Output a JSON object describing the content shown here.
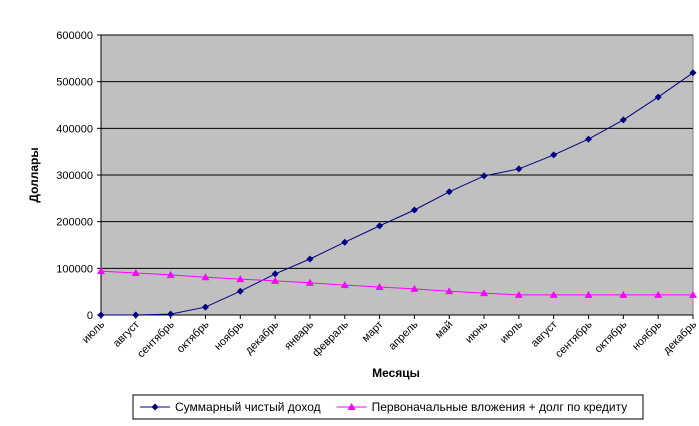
{
  "chart_data": {
    "type": "line",
    "x_label": "Месяцы",
    "y_label": "Доллары",
    "categories": [
      "июль",
      "август",
      "сентябрь",
      "октябрь",
      "ноябрь",
      "декабрь",
      "январь",
      "февраль",
      "март",
      "апрель",
      "май",
      "июнь",
      "июль",
      "август",
      "сентябрь",
      "октябрь",
      "ноябрь",
      "декабрь"
    ],
    "series": [
      {
        "name": "Суммарный чистый доход",
        "color": "#000080",
        "marker": "diamond",
        "values": [
          0,
          0,
          2000,
          17000,
          51000,
          88000,
          120000,
          156000,
          191000,
          225000,
          264000,
          298000,
          313000,
          343000,
          377000,
          418000,
          467000,
          519000
        ]
      },
      {
        "name": "Первоначальные вложения + долг по кредиту",
        "color": "#ff00ff",
        "marker": "triangle",
        "values": [
          94000,
          90000,
          86000,
          81000,
          77000,
          73000,
          69000,
          64000,
          60000,
          56000,
          51000,
          47000,
          43000,
          43000,
          43000,
          43000,
          43000,
          43000
        ]
      }
    ],
    "ylim": [
      0,
      600000
    ],
    "yticks": [
      0,
      100000,
      200000,
      300000,
      400000,
      500000,
      600000
    ],
    "grid": true,
    "plot_background": "#c0c0c0",
    "legend": "bottom"
  }
}
